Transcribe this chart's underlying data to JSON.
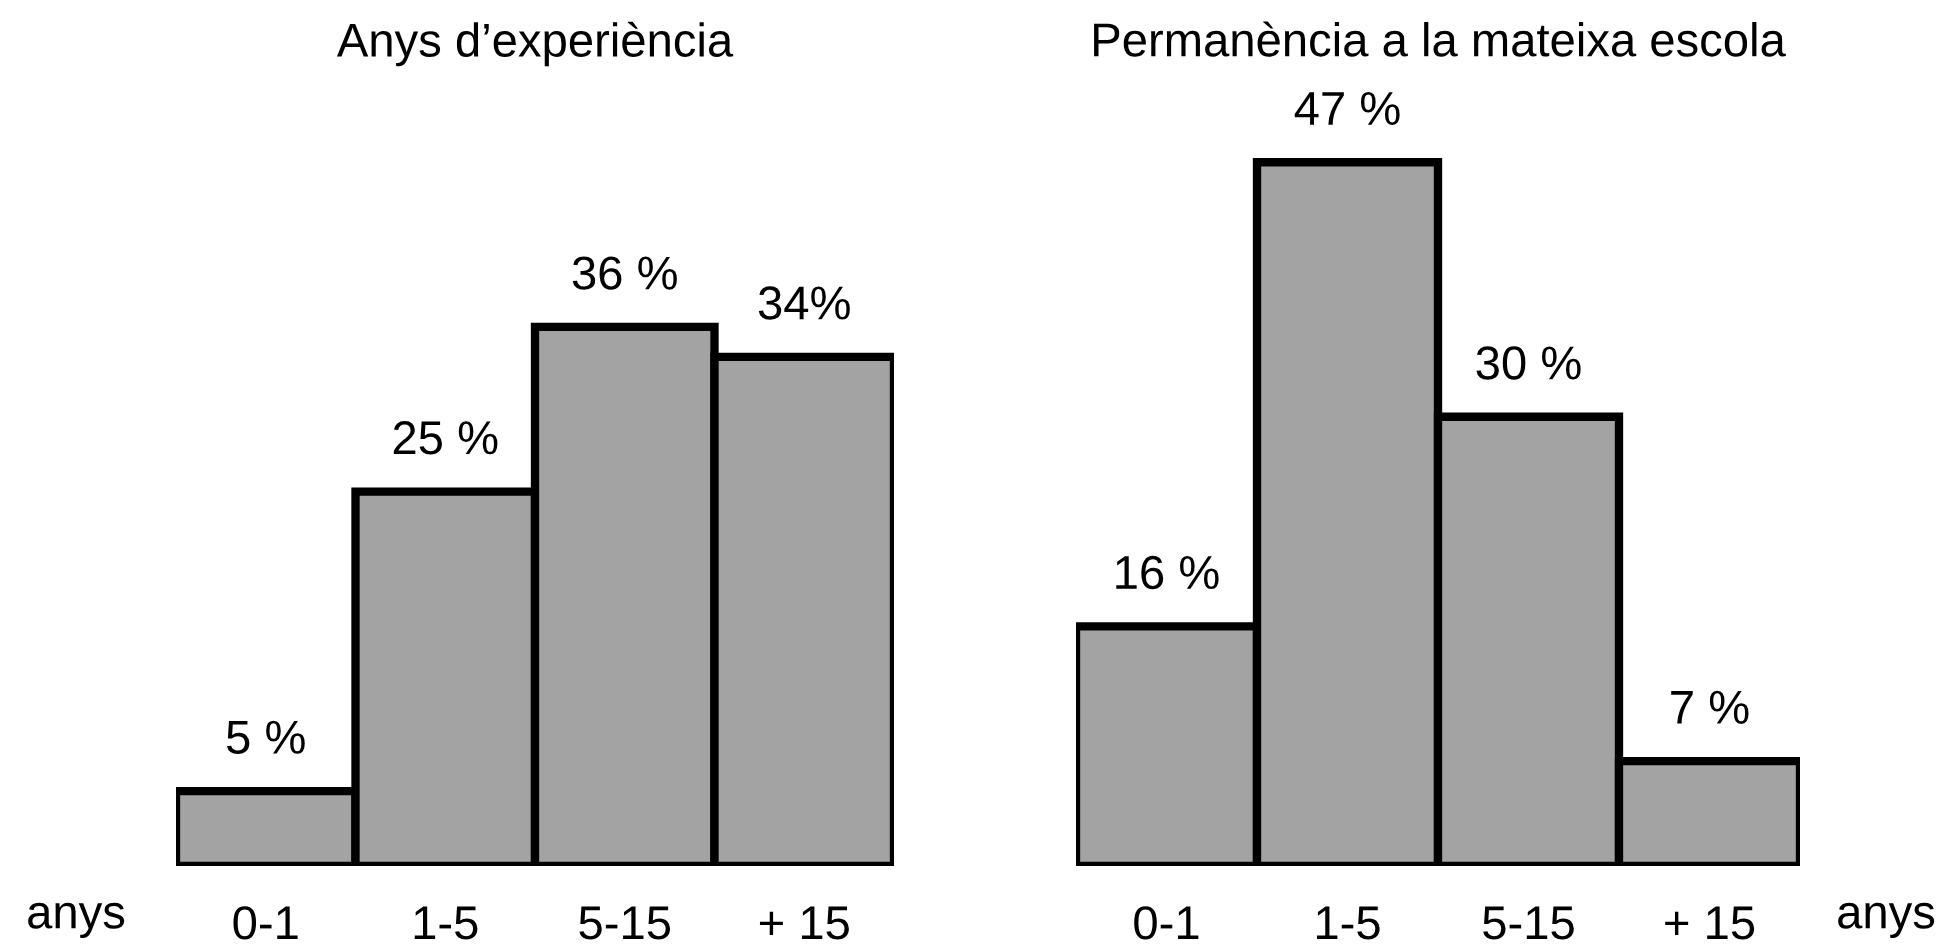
{
  "chart_data": [
    {
      "type": "bar",
      "title": "Anys d’experiència",
      "xlabel": "anys",
      "categories": [
        "0-1",
        "1-5",
        "5-15",
        "+ 15"
      ],
      "values": [
        5,
        25,
        36,
        34
      ],
      "value_labels": [
        "5 %",
        "25 %",
        "36 %",
        "34%"
      ],
      "color": "#a3a3a3",
      "grid": false,
      "legend": false
    },
    {
      "type": "bar",
      "title": "Permanència a la mateixa escola",
      "xlabel": "anys",
      "categories": [
        "0-1",
        "1-5",
        "5-15",
        "+ 15"
      ],
      "values": [
        16,
        47,
        30,
        7
      ],
      "value_labels": [
        "16 %",
        "47 %",
        "30 %",
        "7 %"
      ],
      "color": "#a3a3a3",
      "grid": false,
      "legend": false
    }
  ]
}
